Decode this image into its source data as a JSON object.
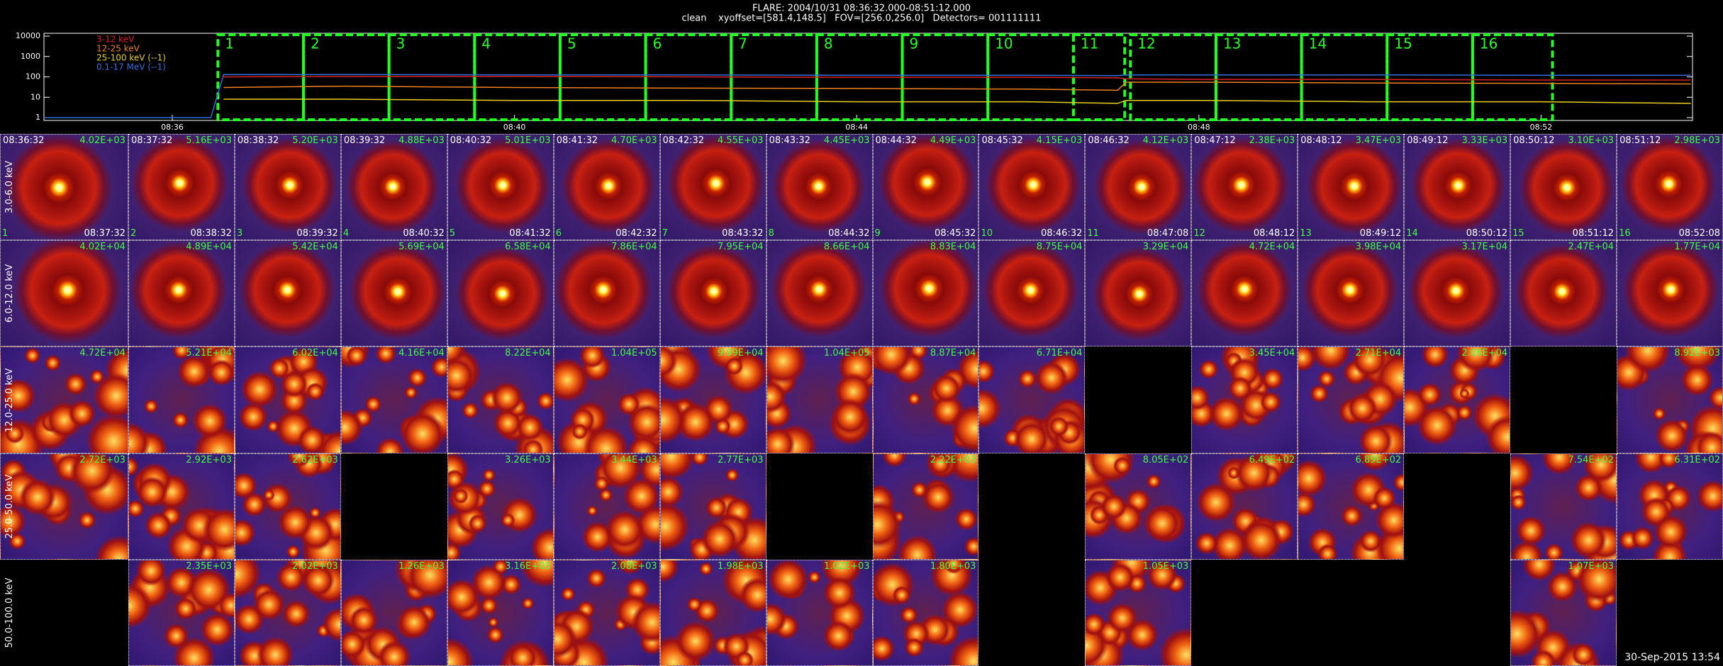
{
  "header": {
    "title": "FLARE: 2004/10/31 08:36:32.000-08:51:12.000",
    "subtitle": "clean    xyoffset=[581.4,148.5]   FOV=[256.0,256.0]   Detectors= 001111111"
  },
  "chart_data": {
    "type": "line",
    "log_y": true,
    "x": [
      34.5,
      36.45,
      36.6,
      38,
      40,
      42,
      44,
      46,
      47.05,
      47.15,
      48,
      50,
      52,
      53.75
    ],
    "xlim": [
      34.5,
      53.77
    ],
    "xticks": [
      {
        "value": 36,
        "label": "08:36"
      },
      {
        "value": 40,
        "label": "08:40"
      },
      {
        "value": 44,
        "label": "08:44"
      },
      {
        "value": 48,
        "label": "08:48"
      },
      {
        "value": 52,
        "label": "08:52"
      }
    ],
    "ylim": [
      1,
      10000
    ],
    "yticks": [
      1,
      10,
      100,
      1000,
      10000
    ],
    "series": [
      {
        "name": "3-12 keV",
        "color": "#e02020",
        "values": [
          null,
          null,
          100,
          105,
          105,
          100,
          95,
          95,
          90,
          80,
          75,
          75,
          70,
          70
        ]
      },
      {
        "name": "12-25 keV",
        "color": "#f08020",
        "values": [
          null,
          null,
          30,
          35,
          30,
          28,
          27,
          25,
          22,
          55,
          55,
          50,
          48,
          45
        ]
      },
      {
        "name": "25-100 keV (--1)",
        "color": "#e8d020",
        "values": [
          null,
          null,
          8,
          8,
          7,
          7,
          6,
          6,
          5,
          7,
          7,
          6,
          6,
          5
        ]
      },
      {
        "name": "0.1-17 MeV (--1)",
        "color": "#3070e0",
        "values": [
          1,
          1,
          130,
          130,
          125,
          125,
          120,
          120,
          115,
          125,
          125,
          125,
          120,
          120
        ]
      }
    ]
  },
  "intervals": [
    {
      "index": "1",
      "start": "08:36:32",
      "end": "08:37:32"
    },
    {
      "index": "2",
      "start": "08:37:32",
      "end": "08:38:32"
    },
    {
      "index": "3",
      "start": "08:38:32",
      "end": "08:39:32"
    },
    {
      "index": "4",
      "start": "08:39:32",
      "end": "08:40:32"
    },
    {
      "index": "5",
      "start": "08:40:32",
      "end": "08:41:32"
    },
    {
      "index": "6",
      "start": "08:41:32",
      "end": "08:42:32"
    },
    {
      "index": "7",
      "start": "08:42:32",
      "end": "08:43:32"
    },
    {
      "index": "8",
      "start": "08:43:32",
      "end": "08:44:32"
    },
    {
      "index": "9",
      "start": "08:44:32",
      "end": "08:45:32"
    },
    {
      "index": "10",
      "start": "08:45:32",
      "end": "08:46:32"
    },
    {
      "index": "11",
      "start": "08:46:32",
      "end": "08:47:08"
    },
    {
      "index": "12",
      "start": "08:47:12",
      "end": "08:48:12"
    },
    {
      "index": "13",
      "start": "08:48:12",
      "end": "08:49:12"
    },
    {
      "index": "14",
      "start": "08:49:12",
      "end": "08:50:12"
    },
    {
      "index": "15",
      "start": "08:50:12",
      "end": "08:51:12"
    },
    {
      "index": "16",
      "start": "08:51:12",
      "end": "08:52:08"
    }
  ],
  "rows": [
    {
      "label": "3.0-6.0 keV",
      "max": [
        "4.02E+03",
        "5.16E+03",
        "5.20E+03",
        "4.88E+03",
        "5.01E+03",
        "4.70E+03",
        "4.55E+03",
        "4.45E+03",
        "4.49E+03",
        "4.15E+03",
        "4.12E+03",
        "2.38E+03",
        "3.47E+03",
        "3.33E+03",
        "3.10E+03",
        "2.98E+03"
      ]
    },
    {
      "label": "6.0-12.0 keV",
      "max": [
        "4.02E+04",
        "4.89E+04",
        "5.42E+04",
        "5.69E+04",
        "6.58E+04",
        "7.86E+04",
        "7.95E+04",
        "8.66E+04",
        "8.83E+04",
        "8.75E+04",
        "3.29E+04",
        "4.72E+04",
        "3.98E+04",
        "3.17E+04",
        "2.47E+04",
        "1.77E+04"
      ]
    },
    {
      "label": "12.0-25.0 keV",
      "max": [
        "4.72E+04",
        "5.21E+04",
        "6.02E+04",
        "4.16E+04",
        "8.22E+04",
        "1.04E+05",
        "9.99E+04",
        "1.04E+05",
        "8.87E+04",
        "6.71E+04",
        null,
        "3.45E+04",
        "2.71E+04",
        "2.06E+04",
        null,
        "8.92E+03"
      ]
    },
    {
      "label": "25.0-50.0 keV",
      "max": [
        "2.72E+03",
        "2.92E+03",
        "2.62E+03",
        null,
        "3.26E+03",
        "3.44E+03",
        "2.77E+03",
        null,
        "2.22E+03",
        null,
        "8.05E+02",
        "6.49E+02",
        "6.89E+02",
        null,
        "7.54E+02",
        "6.31E+02"
      ]
    },
    {
      "label": "50.0-100.0 keV",
      "max": [
        null,
        "2.35E+03",
        "2.02E+03",
        "1.26E+03",
        "3.16E+03",
        "2.08E+03",
        "1.98E+03",
        "1.02E+03",
        "1.80E+03",
        null,
        "1.05E+03",
        null,
        null,
        null,
        "1.07E+03",
        null
      ]
    }
  ],
  "footer": "30-Sep-2015 13:54"
}
